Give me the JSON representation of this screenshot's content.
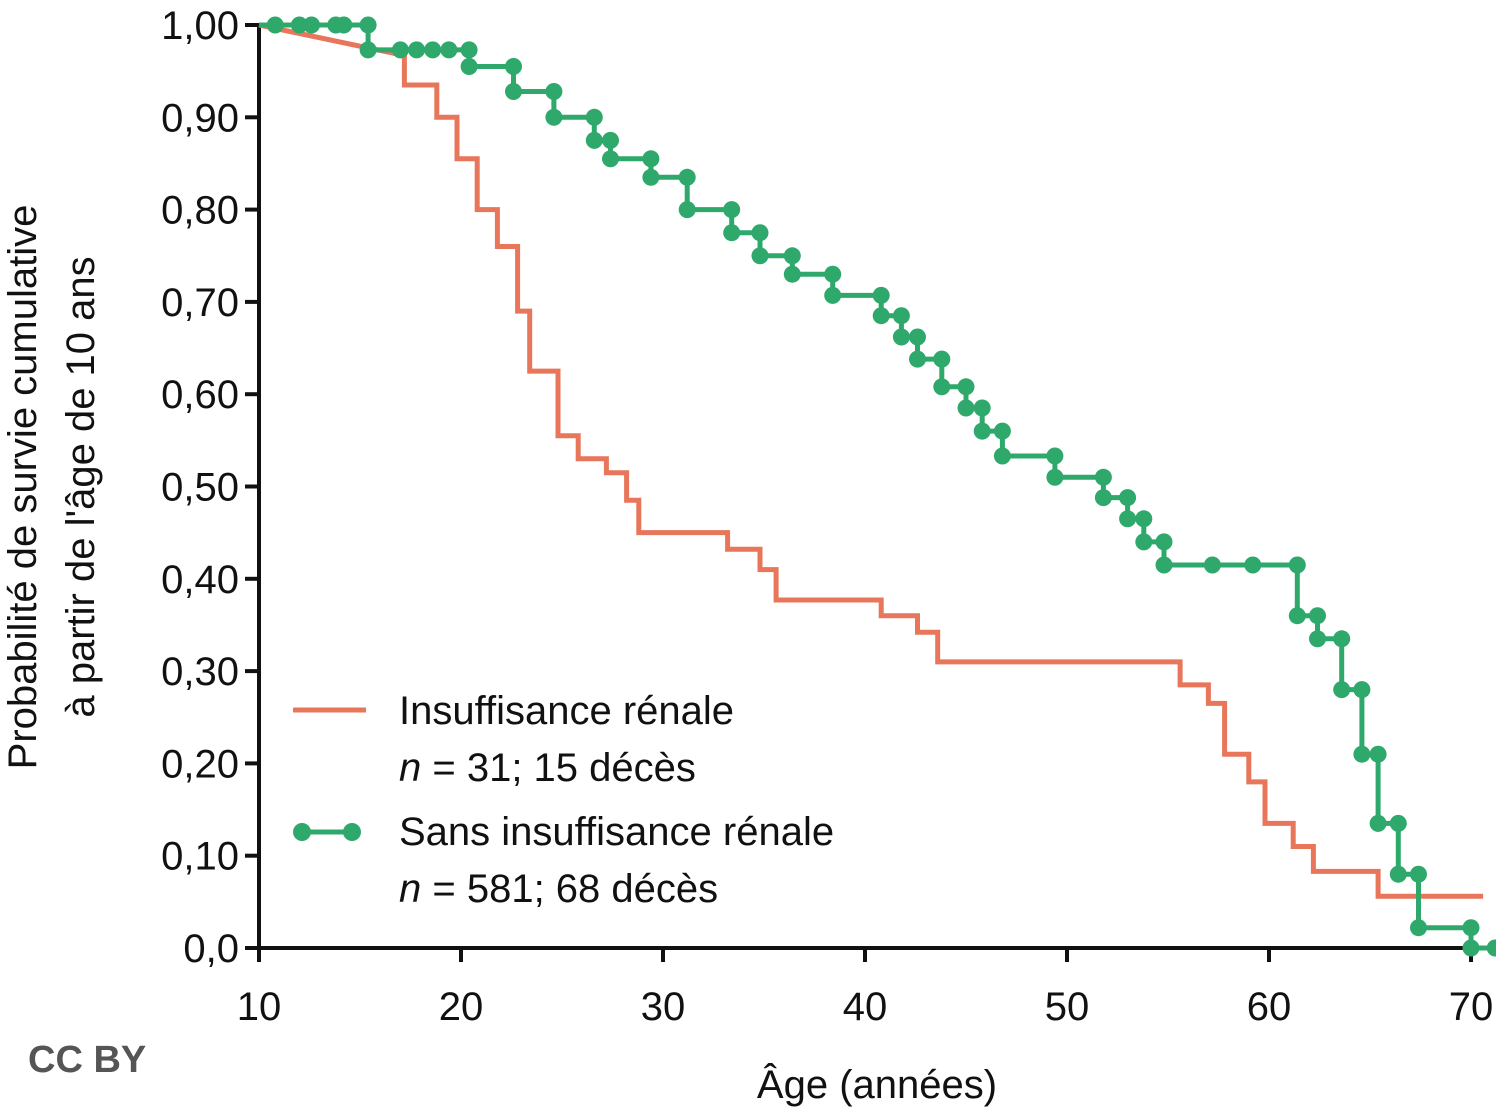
{
  "colors": {
    "renal": "#e8765a",
    "no_renal": "#2ea86b",
    "axis": "#111111"
  },
  "chart_data": {
    "type": "line",
    "subtype": "kaplan-meier step",
    "title": "",
    "xlabel": "Âge (années)",
    "ylabel_line1": "Probabilité de survie cumulative",
    "ylabel_line2": "à partir de l'âge de 10 ans",
    "xlim": [
      10,
      71
    ],
    "ylim": [
      0,
      1
    ],
    "x_ticks": [
      {
        "value": 10,
        "label": "10"
      },
      {
        "value": 20,
        "label": "20"
      },
      {
        "value": 30,
        "label": "30"
      },
      {
        "value": 40,
        "label": "40"
      },
      {
        "value": 50,
        "label": "50"
      },
      {
        "value": 60,
        "label": "60"
      },
      {
        "value": 70,
        "label": "70"
      }
    ],
    "y_ticks": [
      {
        "value": 0.0,
        "label": "0,0"
      },
      {
        "value": 0.1,
        "label": "0,10"
      },
      {
        "value": 0.2,
        "label": "0,20"
      },
      {
        "value": 0.3,
        "label": "0,30"
      },
      {
        "value": 0.4,
        "label": "0,40"
      },
      {
        "value": 0.5,
        "label": "0,50"
      },
      {
        "value": 0.6,
        "label": "0,60"
      },
      {
        "value": 0.7,
        "label": "0,70"
      },
      {
        "value": 0.8,
        "label": "0,80"
      },
      {
        "value": 0.9,
        "label": "0,90"
      },
      {
        "value": 1.0,
        "label": "1,00"
      }
    ],
    "grid": false,
    "legend_position": "bottom-left",
    "series": [
      {
        "id": "renal",
        "name": "Insuffisance rénale",
        "n_label_prefix": "n",
        "n_label_suffix": " = 31; 15 décès",
        "markers": false,
        "steps": [
          [
            10,
            1.0
          ],
          [
            17.2,
            0.967
          ],
          [
            17.2,
            0.935
          ],
          [
            18.8,
            0.935
          ],
          [
            18.8,
            0.9
          ],
          [
            19.8,
            0.9
          ],
          [
            19.8,
            0.855
          ],
          [
            20.8,
            0.855
          ],
          [
            20.8,
            0.8
          ],
          [
            21.8,
            0.8
          ],
          [
            21.8,
            0.76
          ],
          [
            22.8,
            0.76
          ],
          [
            22.8,
            0.69
          ],
          [
            23.4,
            0.69
          ],
          [
            23.4,
            0.625
          ],
          [
            24.8,
            0.625
          ],
          [
            24.8,
            0.555
          ],
          [
            25.8,
            0.555
          ],
          [
            25.8,
            0.53
          ],
          [
            27.2,
            0.53
          ],
          [
            27.2,
            0.515
          ],
          [
            28.2,
            0.515
          ],
          [
            28.2,
            0.485
          ],
          [
            28.8,
            0.485
          ],
          [
            28.8,
            0.45
          ],
          [
            33.2,
            0.45
          ],
          [
            33.2,
            0.432
          ],
          [
            34.8,
            0.432
          ],
          [
            34.8,
            0.41
          ],
          [
            35.6,
            0.41
          ],
          [
            35.6,
            0.377
          ],
          [
            40.8,
            0.377
          ],
          [
            40.8,
            0.36
          ],
          [
            42.6,
            0.36
          ],
          [
            42.6,
            0.342
          ],
          [
            43.6,
            0.342
          ],
          [
            43.6,
            0.31
          ],
          [
            55.6,
            0.31
          ],
          [
            55.6,
            0.285
          ],
          [
            57.0,
            0.285
          ],
          [
            57.0,
            0.265
          ],
          [
            57.8,
            0.265
          ],
          [
            57.8,
            0.21
          ],
          [
            59.0,
            0.21
          ],
          [
            59.0,
            0.18
          ],
          [
            59.8,
            0.18
          ],
          [
            59.8,
            0.135
          ],
          [
            61.2,
            0.135
          ],
          [
            61.2,
            0.11
          ],
          [
            62.2,
            0.11
          ],
          [
            62.2,
            0.083
          ],
          [
            65.4,
            0.083
          ],
          [
            65.4,
            0.056
          ],
          [
            70.6,
            0.056
          ]
        ]
      },
      {
        "id": "no_renal",
        "name": "Sans insuffisance rénale",
        "n_label_prefix": "n",
        "n_label_suffix": " = 581; 68 décès",
        "markers": true,
        "steps": [
          [
            10,
            1.0
          ],
          [
            15.4,
            1.0
          ],
          [
            15.4,
            0.973
          ],
          [
            20.4,
            0.973
          ],
          [
            20.4,
            0.955
          ],
          [
            22.6,
            0.955
          ],
          [
            22.6,
            0.928
          ],
          [
            24.6,
            0.928
          ],
          [
            24.6,
            0.9
          ],
          [
            26.6,
            0.9
          ],
          [
            26.6,
            0.875
          ],
          [
            27.4,
            0.875
          ],
          [
            27.4,
            0.855
          ],
          [
            29.4,
            0.855
          ],
          [
            29.4,
            0.835
          ],
          [
            31.2,
            0.835
          ],
          [
            31.2,
            0.8
          ],
          [
            33.4,
            0.8
          ],
          [
            33.4,
            0.775
          ],
          [
            34.8,
            0.775
          ],
          [
            34.8,
            0.75
          ],
          [
            36.4,
            0.75
          ],
          [
            36.4,
            0.73
          ],
          [
            38.4,
            0.73
          ],
          [
            38.4,
            0.707
          ],
          [
            40.8,
            0.707
          ],
          [
            40.8,
            0.685
          ],
          [
            41.8,
            0.685
          ],
          [
            41.8,
            0.662
          ],
          [
            42.6,
            0.662
          ],
          [
            42.6,
            0.638
          ],
          [
            43.8,
            0.638
          ],
          [
            43.8,
            0.608
          ],
          [
            45.0,
            0.608
          ],
          [
            45.0,
            0.585
          ],
          [
            45.8,
            0.585
          ],
          [
            45.8,
            0.56
          ],
          [
            46.8,
            0.56
          ],
          [
            46.8,
            0.533
          ],
          [
            49.4,
            0.533
          ],
          [
            49.4,
            0.51
          ],
          [
            51.8,
            0.51
          ],
          [
            51.8,
            0.488
          ],
          [
            53.0,
            0.488
          ],
          [
            53.0,
            0.465
          ],
          [
            53.8,
            0.465
          ],
          [
            53.8,
            0.44
          ],
          [
            54.8,
            0.44
          ],
          [
            54.8,
            0.415
          ],
          [
            61.4,
            0.415
          ],
          [
            61.4,
            0.36
          ],
          [
            62.4,
            0.36
          ],
          [
            62.4,
            0.335
          ],
          [
            63.6,
            0.335
          ],
          [
            63.6,
            0.28
          ],
          [
            64.6,
            0.28
          ],
          [
            64.6,
            0.21
          ],
          [
            65.4,
            0.21
          ],
          [
            65.4,
            0.135
          ],
          [
            66.4,
            0.135
          ],
          [
            66.4,
            0.08
          ],
          [
            67.4,
            0.08
          ],
          [
            67.4,
            0.022
          ],
          [
            70.0,
            0.022
          ],
          [
            70.0,
            0.0
          ],
          [
            71.4,
            0.0
          ]
        ],
        "censor_points": [
          [
            10.8,
            1.0
          ],
          [
            12.0,
            1.0
          ],
          [
            12.6,
            1.0
          ],
          [
            13.8,
            1.0
          ],
          [
            14.2,
            1.0
          ],
          [
            15.4,
            1.0
          ],
          [
            15.4,
            0.973
          ],
          [
            17.0,
            0.973
          ],
          [
            17.8,
            0.973
          ],
          [
            18.6,
            0.973
          ],
          [
            19.4,
            0.973
          ],
          [
            20.4,
            0.973
          ],
          [
            20.4,
            0.955
          ],
          [
            22.6,
            0.955
          ],
          [
            22.6,
            0.928
          ],
          [
            24.6,
            0.928
          ],
          [
            24.6,
            0.9
          ],
          [
            26.6,
            0.9
          ],
          [
            26.6,
            0.875
          ],
          [
            27.4,
            0.875
          ],
          [
            27.4,
            0.855
          ],
          [
            29.4,
            0.855
          ],
          [
            29.4,
            0.835
          ],
          [
            31.2,
            0.835
          ],
          [
            31.2,
            0.8
          ],
          [
            33.4,
            0.8
          ],
          [
            33.4,
            0.775
          ],
          [
            34.8,
            0.775
          ],
          [
            34.8,
            0.75
          ],
          [
            36.4,
            0.75
          ],
          [
            36.4,
            0.73
          ],
          [
            38.4,
            0.73
          ],
          [
            38.4,
            0.707
          ],
          [
            40.8,
            0.707
          ],
          [
            40.8,
            0.685
          ],
          [
            41.8,
            0.685
          ],
          [
            41.8,
            0.662
          ],
          [
            42.6,
            0.662
          ],
          [
            42.6,
            0.638
          ],
          [
            43.8,
            0.638
          ],
          [
            43.8,
            0.608
          ],
          [
            45.0,
            0.608
          ],
          [
            45.0,
            0.585
          ],
          [
            45.8,
            0.585
          ],
          [
            45.8,
            0.56
          ],
          [
            46.8,
            0.56
          ],
          [
            46.8,
            0.533
          ],
          [
            49.4,
            0.533
          ],
          [
            49.4,
            0.51
          ],
          [
            51.8,
            0.51
          ],
          [
            51.8,
            0.488
          ],
          [
            53.0,
            0.488
          ],
          [
            53.0,
            0.465
          ],
          [
            53.8,
            0.465
          ],
          [
            53.8,
            0.44
          ],
          [
            54.8,
            0.44
          ],
          [
            54.8,
            0.415
          ],
          [
            57.2,
            0.415
          ],
          [
            59.2,
            0.415
          ],
          [
            61.4,
            0.415
          ],
          [
            61.4,
            0.36
          ],
          [
            62.4,
            0.36
          ],
          [
            62.4,
            0.335
          ],
          [
            63.6,
            0.335
          ],
          [
            63.6,
            0.28
          ],
          [
            64.6,
            0.28
          ],
          [
            64.6,
            0.21
          ],
          [
            65.4,
            0.21
          ],
          [
            65.4,
            0.135
          ],
          [
            66.4,
            0.135
          ],
          [
            66.4,
            0.08
          ],
          [
            67.4,
            0.08
          ],
          [
            67.4,
            0.022
          ],
          [
            70.0,
            0.022
          ],
          [
            70.0,
            0.0
          ],
          [
            71.2,
            0.0
          ]
        ]
      }
    ]
  },
  "watermark": "CC BY"
}
